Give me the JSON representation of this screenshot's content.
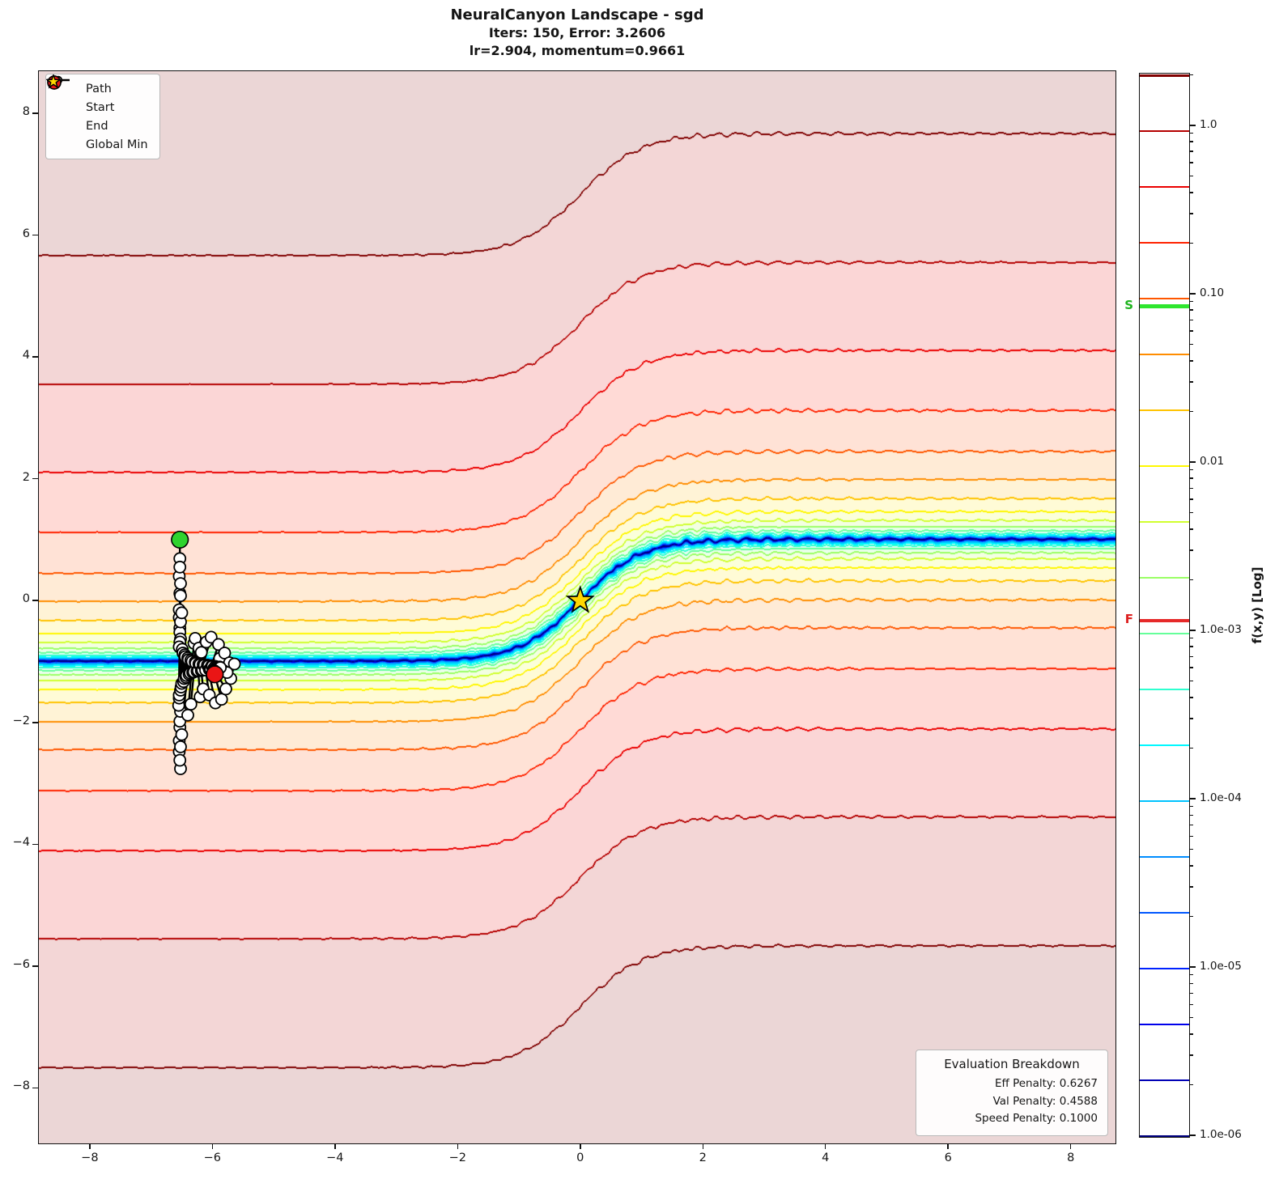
{
  "title": {
    "line1": "NeuralCanyon Landscape - sgd",
    "line2": "Iters: 150, Error: 3.2606",
    "line3": "lr=2.904, momentum=0.9661"
  },
  "legend": {
    "items": [
      {
        "label": "Path",
        "marker": "line-circle",
        "color": "#111111"
      },
      {
        "label": "Start",
        "marker": "circle",
        "color": "#2ed32e"
      },
      {
        "label": "End",
        "marker": "circle",
        "color": "#ea1515"
      },
      {
        "label": "Global Min",
        "marker": "star",
        "color": "#ffd700"
      }
    ]
  },
  "evaluation_box": {
    "title": "Evaluation Breakdown",
    "lines": [
      "Eff Penalty: 0.6267",
      "Val Penalty: 0.4588",
      "Speed Penalty: 0.1000"
    ]
  },
  "colorbar": {
    "label": "f(x,y) [Log]",
    "vmin": 1e-06,
    "vmax": 2.05,
    "ticks": [
      {
        "value": 1.0,
        "label": "1.0"
      },
      {
        "value": 0.1,
        "label": "0.10"
      },
      {
        "value": 0.01,
        "label": "0.01"
      },
      {
        "value": 0.001,
        "label": "1.0e-03"
      },
      {
        "value": 0.0001,
        "label": "1.0e-04"
      },
      {
        "value": 1e-05,
        "label": "1.0e-05"
      },
      {
        "value": 1e-06,
        "label": "1.0e-06"
      }
    ],
    "start_marker": {
      "label": "S",
      "value": 0.085,
      "text_color": "#1fb41f",
      "line_color": "#2ee62e"
    },
    "end_marker": {
      "label": "F",
      "value": 0.00115,
      "text_color": "#dd1f1f",
      "line_color": "#e62929"
    }
  },
  "chart_data": {
    "type": "contour",
    "title": "NeuralCanyon Landscape - sgd",
    "colormap": "jet",
    "axes": {
      "x_min": -8.83,
      "x_max": 8.73,
      "y_min": -8.91,
      "y_max": 8.69,
      "x_ticks": [
        -8,
        -6,
        -4,
        -2,
        0,
        2,
        4,
        6,
        8
      ],
      "x_tick_labels": [
        "−8",
        "−6",
        "−4",
        "−2",
        "0",
        "2",
        "4",
        "6",
        "8"
      ],
      "y_ticks": [
        8,
        6,
        4,
        2,
        0,
        -2,
        -4,
        -6,
        -8
      ],
      "y_tick_labels": [
        "8",
        "6",
        "4",
        "2",
        "0",
        "−2",
        "−4",
        "−6",
        "−8"
      ]
    },
    "surface": {
      "form": "quadratic-canyon",
      "valley": "y = tanh(x)",
      "coeff": 0.045,
      "floor": 1e-09,
      "ripple_amp": [
        0.03,
        0.017
      ],
      "ripple_freq_x": [
        19,
        33
      ],
      "ripple_freq_y": [
        9,
        16
      ],
      "ripple_phase": [
        1.3,
        0.6
      ],
      "ripple_loc_base": 0.15,
      "ripple_loc_gain": 0.85,
      "ripple_loc_center": 1.2,
      "ripple_loc_width": 3.2,
      "ripple_right_gain": 0.2,
      "ripple_right_center": 4
    },
    "levels": [
      1e-06,
      2.15e-06,
      4.6e-06,
      9.9e-06,
      2.12e-05,
      4.55e-05,
      9.77e-05,
      0.00021,
      0.00045,
      0.000966,
      0.00207,
      0.00445,
      0.00955,
      0.0205,
      0.044,
      0.0944,
      0.203,
      0.435,
      0.934,
      2.0
    ],
    "global_min": {
      "x": 0,
      "y": 0,
      "color": "#ffd700"
    },
    "path": {
      "color": "#000000",
      "marker_fill": "#ffffff",
      "start": {
        "x": -6.53,
        "y": 1.0,
        "color": "#2ed32e"
      },
      "end": {
        "x": -5.96,
        "y": -1.21,
        "color": "#ea1515"
      },
      "points": [
        [
          -6.53,
          1.0
        ],
        [
          -6.53,
          0.69
        ],
        [
          -6.54,
          0.4
        ],
        [
          -6.53,
          0.12
        ],
        [
          -6.52,
          -2.76
        ],
        [
          -6.54,
          -2.48
        ],
        [
          -6.53,
          0.55
        ],
        [
          -6.52,
          0.28
        ],
        [
          -6.54,
          -2.3
        ],
        [
          -6.53,
          -2.08
        ],
        [
          -6.52,
          0.08
        ],
        [
          -6.54,
          -0.15
        ],
        [
          -6.53,
          -1.98
        ],
        [
          -6.52,
          -1.82
        ],
        [
          -6.54,
          -0.28
        ],
        [
          -6.53,
          -0.45
        ],
        [
          -6.55,
          -1.72
        ],
        [
          -6.54,
          -1.6
        ],
        [
          -6.53,
          -0.52
        ],
        [
          -6.52,
          -0.63
        ],
        [
          -6.54,
          -1.55
        ],
        [
          -6.52,
          -1.47
        ],
        [
          -6.53,
          -0.68
        ],
        [
          -6.54,
          -0.76
        ],
        [
          -6.51,
          -1.42
        ],
        [
          -6.5,
          -1.36
        ],
        [
          -6.49,
          -0.8
        ],
        [
          -6.48,
          -0.86
        ],
        [
          -6.47,
          -1.33
        ],
        [
          -6.46,
          -1.28
        ],
        [
          -6.45,
          -0.89
        ],
        [
          -6.44,
          -0.92
        ],
        [
          -6.43,
          -1.26
        ],
        [
          -6.42,
          -1.23
        ],
        [
          -6.4,
          -0.94
        ],
        [
          -6.39,
          -0.97
        ],
        [
          -6.5,
          -2.2
        ],
        [
          -6.52,
          -2.4
        ],
        [
          -6.53,
          -2.62
        ],
        [
          -6.52,
          -0.35
        ],
        [
          -6.5,
          -0.2
        ],
        [
          -6.38,
          -1.21
        ],
        [
          -6.36,
          -1.19
        ],
        [
          -6.35,
          -0.98
        ],
        [
          -6.33,
          -1.0
        ],
        [
          -6.32,
          -1.18
        ],
        [
          -6.3,
          -1.17
        ],
        [
          -6.35,
          -1.7
        ],
        [
          -6.4,
          -1.88
        ],
        [
          -6.3,
          -0.7
        ],
        [
          -6.28,
          -0.62
        ],
        [
          -6.28,
          -1.01
        ],
        [
          -6.27,
          -1.03
        ],
        [
          -6.25,
          -1.16
        ],
        [
          -6.23,
          -1.15
        ],
        [
          -6.2,
          -1.58
        ],
        [
          -6.15,
          -1.45
        ],
        [
          -6.22,
          -0.78
        ],
        [
          -6.18,
          -0.85
        ],
        [
          -6.22,
          -1.04
        ],
        [
          -6.2,
          -1.05
        ],
        [
          -6.18,
          -1.15
        ],
        [
          -6.16,
          -1.14
        ],
        [
          -6.1,
          -0.68
        ],
        [
          -6.02,
          -0.6
        ],
        [
          -6.15,
          -1.05
        ],
        [
          -6.13,
          -1.06
        ],
        [
          -6.11,
          -1.14
        ],
        [
          -6.05,
          -1.55
        ],
        [
          -5.95,
          -1.68
        ],
        [
          -6.08,
          -1.06
        ],
        [
          -6.06,
          -1.07
        ],
        [
          -6.05,
          -1.13
        ],
        [
          -6.03,
          -1.12
        ],
        [
          -5.9,
          -0.72
        ],
        [
          -5.88,
          -0.95
        ],
        [
          -6.01,
          -1.07
        ],
        [
          -6.0,
          -1.08
        ],
        [
          -5.85,
          -1.62
        ],
        [
          -5.78,
          -1.45
        ],
        [
          -5.98,
          -1.12
        ],
        [
          -5.97,
          -1.11
        ],
        [
          -5.8,
          -0.86
        ],
        [
          -5.72,
          -1.02
        ],
        [
          -5.95,
          -1.08
        ],
        [
          -5.93,
          -1.09
        ],
        [
          -5.64,
          -1.04
        ],
        [
          -5.7,
          -1.28
        ],
        [
          -5.92,
          -1.11
        ],
        [
          -5.9,
          -1.1
        ],
        [
          -5.82,
          -1.15
        ],
        [
          -5.76,
          -1.18
        ],
        [
          -5.88,
          -1.09
        ],
        [
          -5.87,
          -1.1
        ],
        [
          -5.97,
          -1.15
        ],
        [
          -5.96,
          -1.21
        ]
      ]
    }
  }
}
